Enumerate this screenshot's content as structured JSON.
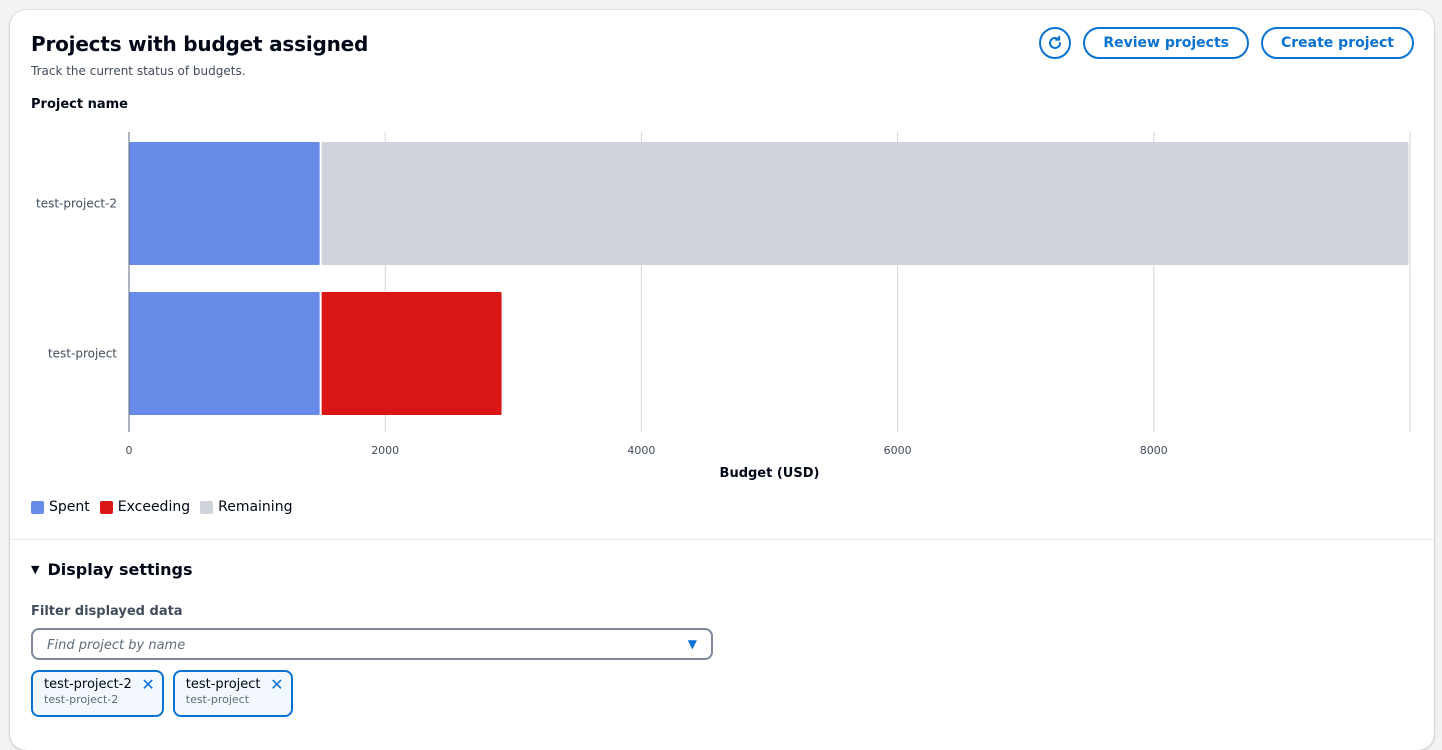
{
  "header": {
    "title": "Projects with budget assigned",
    "subtitle": "Track the current status of budgets.",
    "refresh_icon": "refresh-icon",
    "review_label": "Review projects",
    "create_label": "Create project"
  },
  "chart_data": {
    "type": "bar",
    "orientation": "horizontal",
    "stacked": true,
    "title": "",
    "ylabel": "Project name",
    "xlabel": "Budget (USD)",
    "xlim": [
      0,
      10000
    ],
    "xticks": [
      0,
      2000,
      4000,
      6000,
      8000
    ],
    "grid": true,
    "categories": [
      "test-project-2",
      "test-project"
    ],
    "series": [
      {
        "name": "Spent",
        "color": "#688ae8",
        "values": [
          1500,
          1500
        ]
      },
      {
        "name": "Exceeding",
        "color": "#d91515",
        "values": [
          0,
          1420
        ]
      },
      {
        "name": "Remaining",
        "color": "#cfd4dc",
        "values": [
          8500,
          0
        ]
      }
    ],
    "legend_position": "bottom-left"
  },
  "settings": {
    "toggle_label": "Display settings",
    "caret_icon": "caret-down-icon",
    "filter_label": "Filter displayed data",
    "search_placeholder": "Find project by name",
    "dropdown_icon": "caret-down-filled-icon",
    "tokens": [
      {
        "label": "test-project-2",
        "description": "test-project-2"
      },
      {
        "label": "test-project",
        "description": "test-project"
      }
    ]
  },
  "colors": {
    "accent": "#0972d3",
    "text": "#000716",
    "muted": "#414d5c"
  }
}
